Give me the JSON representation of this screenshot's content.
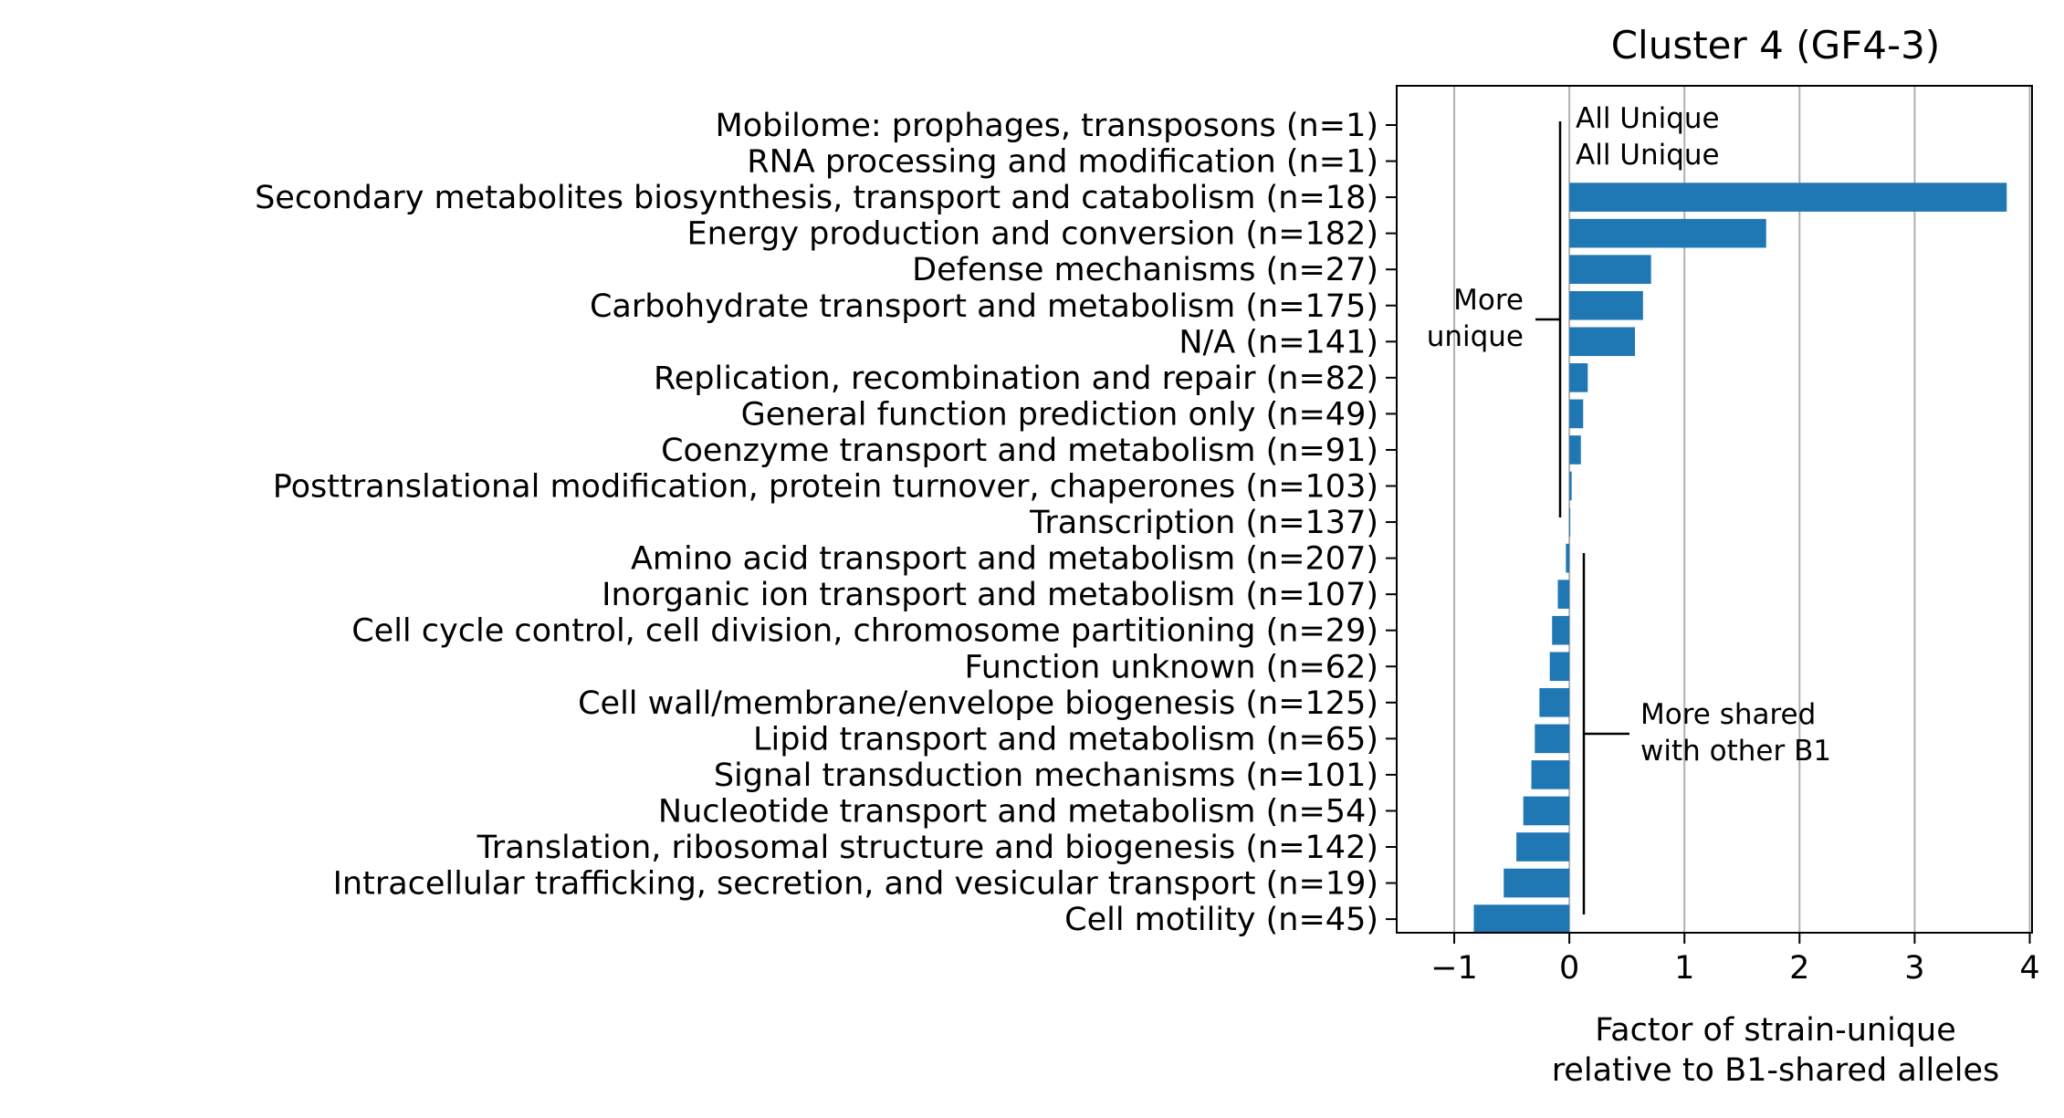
{
  "chart_data": {
    "type": "bar",
    "orientation": "horizontal",
    "title": "Cluster 4 (GF4-3)",
    "xlabel": [
      "Factor of strain-unique",
      "relative to B1-shared alleles"
    ],
    "ylabel": "",
    "xlim": [
      -1.5,
      4.02
    ],
    "xticks": [
      -1,
      0,
      1,
      2,
      3,
      4
    ],
    "xtick_labels": [
      "−1",
      "0",
      "1",
      "2",
      "3",
      "4"
    ],
    "grid": "x",
    "bar_color": "#1f77b4",
    "categories": [
      "Mobilome: prophages, transposons (n=1)",
      "RNA processing and modification (n=1)",
      "Secondary metabolites biosynthesis, transport and catabolism (n=18)",
      "Energy production and conversion (n=182)",
      "Defense mechanisms (n=27)",
      "Carbohydrate transport and metabolism (n=175)",
      "N/A (n=141)",
      "Replication, recombination and repair (n=82)",
      "General function prediction only (n=49)",
      "Coenzyme transport and metabolism (n=91)",
      "Posttranslational modification, protein turnover, chaperones (n=103)",
      "Transcription (n=137)",
      "Amino acid transport and metabolism (n=207)",
      "Inorganic ion transport and metabolism (n=107)",
      "Cell cycle control, cell division, chromosome partitioning (n=29)",
      "Function unknown (n=62)",
      "Cell wall/membrane/envelope biogenesis (n=125)",
      "Lipid transport and metabolism (n=65)",
      "Signal transduction mechanisms (n=101)",
      "Nucleotide transport and metabolism (n=54)",
      "Translation, ribosomal structure and biogenesis (n=142)",
      "Intracellular trafficking, secretion, and vesicular transport (n=19)",
      "Cell motility (n=45)"
    ],
    "values": [
      null,
      null,
      3.8,
      1.71,
      0.71,
      0.64,
      0.57,
      0.16,
      0.12,
      0.1,
      0.02,
      0.0,
      -0.03,
      -0.1,
      -0.15,
      -0.17,
      -0.26,
      -0.3,
      -0.33,
      -0.4,
      -0.46,
      -0.57,
      -0.83
    ],
    "annotations": {
      "all_unique": [
        "All Unique",
        "All Unique"
      ],
      "more_unique": [
        "More",
        "unique"
      ],
      "more_shared": [
        "More shared",
        "with other B1"
      ]
    }
  }
}
